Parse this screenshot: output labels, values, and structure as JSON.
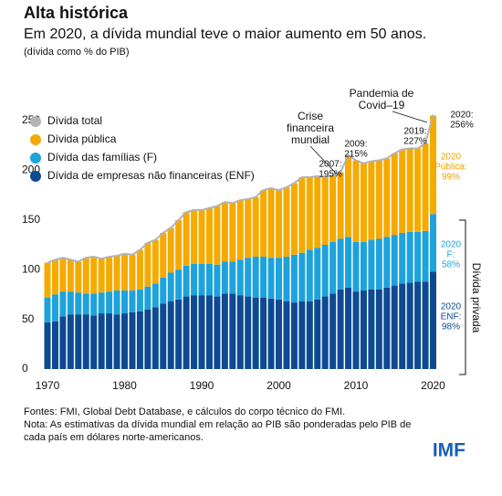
{
  "chart_data": {
    "type": "bar",
    "title": "Alta histórica",
    "subtitle": "Em 2020, a dívida mundial teve o maior aumento em 50 anos.",
    "unit_note": "(dívida como % do PIB)",
    "categories": [
      "1970",
      "1971",
      "1972",
      "1973",
      "1974",
      "1975",
      "1976",
      "1977",
      "1978",
      "1979",
      "1980",
      "1981",
      "1982",
      "1983",
      "1984",
      "1985",
      "1986",
      "1987",
      "1988",
      "1989",
      "1990",
      "1991",
      "1992",
      "1993",
      "1994",
      "1995",
      "1996",
      "1997",
      "1998",
      "1999",
      "2000",
      "2001",
      "2002",
      "2003",
      "2004",
      "2005",
      "2006",
      "2007",
      "2008",
      "2009",
      "2010",
      "2011",
      "2012",
      "2013",
      "2014",
      "2015",
      "2016",
      "2017",
      "2018",
      "2019",
      "2020"
    ],
    "xticks": [
      {
        "value": 0,
        "label": "1970"
      },
      {
        "value": 10,
        "label": "1980"
      },
      {
        "value": 20,
        "label": "1990"
      },
      {
        "value": 30,
        "label": "2000"
      },
      {
        "value": 40,
        "label": "2010"
      },
      {
        "value": 50,
        "label": "2020"
      }
    ],
    "total": {
      "name": "Dívida total",
      "color": "#b3b3b3",
      "values": [
        107,
        110,
        112,
        110,
        108,
        112,
        113,
        111,
        113,
        114,
        116,
        115,
        120,
        127,
        130,
        137,
        142,
        150,
        158,
        160,
        160,
        162,
        164,
        168,
        167,
        170,
        171,
        173,
        180,
        182,
        180,
        183,
        187,
        193,
        193,
        194,
        193,
        195,
        198,
        215,
        210,
        207,
        209,
        210,
        212,
        217,
        221,
        222,
        222,
        227,
        256
      ]
    },
    "series": [
      {
        "name": "Dívida de empresas não financeiras (ENF)",
        "color": "#0d4a92",
        "values": [
          47,
          48,
          53,
          55,
          55,
          55,
          54,
          56,
          56,
          55,
          56,
          57,
          58,
          60,
          62,
          66,
          68,
          70,
          73,
          74,
          74,
          74,
          73,
          76,
          76,
          74,
          73,
          72,
          72,
          71,
          70,
          68,
          67,
          68,
          68,
          70,
          73,
          76,
          80,
          82,
          78,
          79,
          80,
          80,
          82,
          84,
          86,
          87,
          88,
          88,
          98
        ]
      },
      {
        "name": "Dívida das famílias (F)",
        "color": "#1ea2dc",
        "values": [
          25,
          27,
          25,
          23,
          22,
          21,
          22,
          21,
          22,
          24,
          23,
          22,
          22,
          23,
          24,
          26,
          29,
          30,
          31,
          32,
          32,
          32,
          32,
          32,
          32,
          36,
          39,
          41,
          41,
          41,
          42,
          45,
          48,
          49,
          52,
          52,
          52,
          52,
          51,
          51,
          50,
          49,
          50,
          51,
          51,
          51,
          51,
          51,
          50,
          51,
          58
        ]
      },
      {
        "name": "Dívida pública",
        "color": "#f5aa00",
        "values": [
          35,
          35,
          34,
          32,
          31,
          36,
          37,
          34,
          35,
          35,
          37,
          36,
          40,
          44,
          44,
          45,
          45,
          50,
          54,
          54,
          54,
          56,
          59,
          60,
          59,
          60,
          59,
          60,
          67,
          70,
          68,
          70,
          72,
          76,
          73,
          72,
          68,
          67,
          67,
          82,
          82,
          79,
          79,
          79,
          79,
          82,
          84,
          84,
          84,
          88,
          99
        ]
      }
    ],
    "ylim": [
      0,
      250
    ],
    "yticks": [
      0,
      50,
      100,
      150,
      200,
      250
    ],
    "annotations": [
      {
        "lines": [
          "2007:",
          "195%"
        ],
        "color": "#111111"
      },
      {
        "lines": [
          "2009:",
          "215%"
        ],
        "color": "#111111"
      },
      {
        "lines": [
          "Crise",
          "financeira",
          "mundial"
        ],
        "color": "#111111"
      },
      {
        "lines": [
          "Pandemia de",
          "Covid–19"
        ],
        "color": "#111111"
      },
      {
        "lines": [
          "2019:",
          "227%"
        ],
        "color": "#111111"
      },
      {
        "lines": [
          "2020:",
          "256%"
        ],
        "color": "#111111"
      },
      {
        "lines": [
          "2020",
          "Pública:",
          "99%"
        ],
        "color": "#e9a100"
      },
      {
        "lines": [
          "2020",
          "F:",
          "58%"
        ],
        "color": "#1ea2dc"
      },
      {
        "lines": [
          "2020",
          "ENF:",
          "98%"
        ],
        "color": "#0d4a92"
      }
    ],
    "bracket_label": "Dívida privada",
    "footnotes": [
      "Fontes: FMI, Global Debt Database, e cálculos do corpo técnico do FMI.",
      "Nota: As estimativas da dívida mundial em relação ao PIB são ponderadas pelo PIB de",
      "cada país em dólares norte-americanos."
    ],
    "logo": "IMF"
  }
}
